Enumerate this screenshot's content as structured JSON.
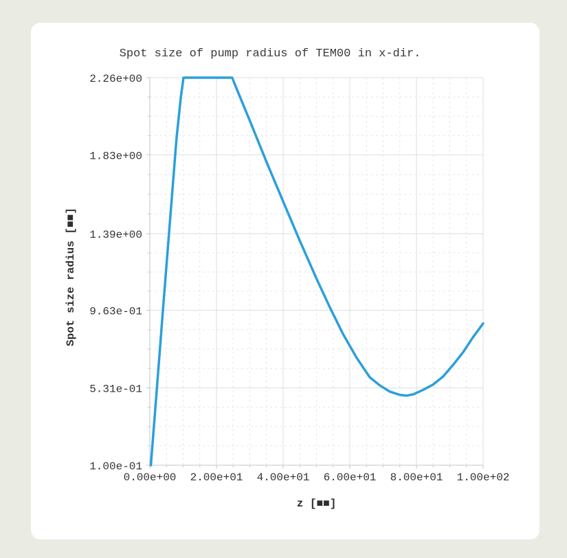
{
  "window": {
    "background": "#eaece3",
    "card_background": "#ffffff"
  },
  "chart_data": {
    "type": "line",
    "title": "Spot size of pump radius of TEM00 in x-dir.",
    "xlabel": "z [mm]",
    "ylabel": "Spot size radius [mm]",
    "xlabel_display": "z [■■]",
    "ylabel_display": "Spot size radius [■■]",
    "xlim": [
      0,
      100
    ],
    "ylim": [
      0.1,
      2.26
    ],
    "x_ticks": {
      "values": [
        0,
        20,
        40,
        60,
        80,
        100
      ],
      "labels": [
        "0.00e+00",
        "2.00e+01",
        "4.00e+01",
        "6.00e+01",
        "8.00e+01",
        "1.00e+02"
      ]
    },
    "y_ticks": {
      "values": [
        2.26,
        1.83,
        1.39,
        0.963,
        0.531,
        0.1
      ],
      "labels": [
        "2.26e+00",
        "1.83e+00",
        "1.39e+00",
        "9.63e-01",
        "5.31e-01",
        "1.00e-01"
      ]
    },
    "minor_divisions": 4,
    "grid": true,
    "legend": "none",
    "colors": {
      "line": "#2b9fdb",
      "grid_major": "#dedede",
      "grid_minor": "#e7e7e7",
      "axis": "#c6c6c6",
      "text": "#333333"
    },
    "series": [
      {
        "name": "spot-size-radius-x",
        "points": [
          [
            0.3,
            0.1
          ],
          [
            2,
            0.5
          ],
          [
            4,
            0.98
          ],
          [
            6,
            1.45
          ],
          [
            8,
            1.92
          ],
          [
            9.3,
            2.15
          ],
          [
            10.1,
            2.26
          ],
          [
            24.7,
            2.26
          ],
          [
            26,
            2.2
          ],
          [
            30,
            2.02
          ],
          [
            35,
            1.79
          ],
          [
            40,
            1.57
          ],
          [
            45,
            1.35
          ],
          [
            50,
            1.14
          ],
          [
            54,
            0.98
          ],
          [
            58,
            0.83
          ],
          [
            62,
            0.7
          ],
          [
            66,
            0.59
          ],
          [
            69,
            0.545
          ],
          [
            72,
            0.51
          ],
          [
            75,
            0.492
          ],
          [
            77,
            0.488
          ],
          [
            79,
            0.495
          ],
          [
            82,
            0.52
          ],
          [
            85,
            0.55
          ],
          [
            88,
            0.595
          ],
          [
            91,
            0.66
          ],
          [
            94,
            0.73
          ],
          [
            97,
            0.815
          ],
          [
            100,
            0.89
          ]
        ]
      }
    ]
  }
}
